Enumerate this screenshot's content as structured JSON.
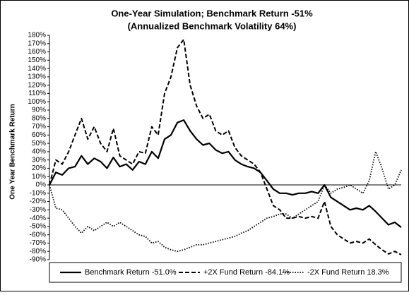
{
  "chart_data": {
    "type": "line",
    "title": "One-Year Simulation; Benchmark Return -51%",
    "subtitle": "(Annualized Benchmark Volatility 64%)",
    "y_label": "One Year Benchmark Return",
    "ylim": [
      -90,
      180
    ],
    "yticks": [
      {
        "value": 180,
        "label": "180%"
      },
      {
        "value": 170,
        "label": "170%"
      },
      {
        "value": 160,
        "label": "160%"
      },
      {
        "value": 150,
        "label": "150%"
      },
      {
        "value": 140,
        "label": "140%"
      },
      {
        "value": 130,
        "label": "130%"
      },
      {
        "value": 120,
        "label": "120%"
      },
      {
        "value": 110,
        "label": "110%"
      },
      {
        "value": 100,
        "label": "100%"
      },
      {
        "value": 90,
        "label": "90%"
      },
      {
        "value": 80,
        "label": "80%"
      },
      {
        "value": 70,
        "label": "70%"
      },
      {
        "value": 60,
        "label": "60%"
      },
      {
        "value": 50,
        "label": "50%"
      },
      {
        "value": 40,
        "label": "40%"
      },
      {
        "value": 30,
        "label": "30%"
      },
      {
        "value": 20,
        "label": "20%"
      },
      {
        "value": 10,
        "label": "10%"
      },
      {
        "value": 0,
        "label": "0%"
      },
      {
        "value": -10,
        "label": "-10%"
      },
      {
        "value": -20,
        "label": "-20%"
      },
      {
        "value": -30,
        "label": "-30%"
      },
      {
        "value": -40,
        "label": "-40%"
      },
      {
        "value": -50,
        "label": "-50%"
      },
      {
        "value": -60,
        "label": "-60%"
      },
      {
        "value": -70,
        "label": "-70%"
      },
      {
        "value": -80,
        "label": "-80%"
      },
      {
        "value": -90,
        "label": "-90%"
      }
    ],
    "grid": false,
    "legend": "bottom",
    "series": [
      {
        "name": "Benchmark Return -51.0%",
        "color": "#000000",
        "dash": "solid",
        "values": [
          0,
          15,
          12,
          20,
          22,
          35,
          25,
          32,
          28,
          20,
          33,
          22,
          25,
          18,
          28,
          25,
          40,
          32,
          55,
          60,
          75,
          78,
          65,
          55,
          48,
          50,
          42,
          38,
          40,
          30,
          25,
          22,
          20,
          15,
          5,
          -5,
          -10,
          -10,
          -12,
          -10,
          -10,
          -8,
          -10,
          0,
          -15,
          -20,
          -25,
          -30,
          -28,
          -30,
          -25,
          -32,
          -40,
          -48,
          -45,
          -51
        ]
      },
      {
        "name": "+2X Fund Return -84.1%",
        "color": "#000000",
        "dash": "dashed",
        "values": [
          0,
          30,
          25,
          40,
          60,
          80,
          55,
          70,
          50,
          40,
          68,
          35,
          30,
          25,
          40,
          38,
          70,
          60,
          110,
          130,
          165,
          175,
          120,
          95,
          80,
          85,
          65,
          60,
          65,
          45,
          35,
          30,
          25,
          15,
          -5,
          -25,
          -30,
          -40,
          -40,
          -38,
          -40,
          -38,
          -40,
          -20,
          -50,
          -60,
          -65,
          -70,
          -68,
          -70,
          -65,
          -72,
          -78,
          -83,
          -80,
          -84
        ]
      },
      {
        "name": "-2X Fund Return 18.3%",
        "color": "#000000",
        "dash": "dotted",
        "values": [
          0,
          -28,
          -30,
          -40,
          -50,
          -58,
          -50,
          -55,
          -50,
          -45,
          -50,
          -45,
          -50,
          -55,
          -60,
          -62,
          -70,
          -68,
          -75,
          -78,
          -80,
          -78,
          -75,
          -72,
          -72,
          -70,
          -68,
          -66,
          -64,
          -62,
          -58,
          -55,
          -50,
          -45,
          -40,
          -38,
          -35,
          -35,
          -40,
          -35,
          -30,
          -25,
          -20,
          0,
          -10,
          -5,
          -3,
          0,
          -5,
          -10,
          5,
          40,
          20,
          -5,
          0,
          18
        ]
      }
    ]
  }
}
